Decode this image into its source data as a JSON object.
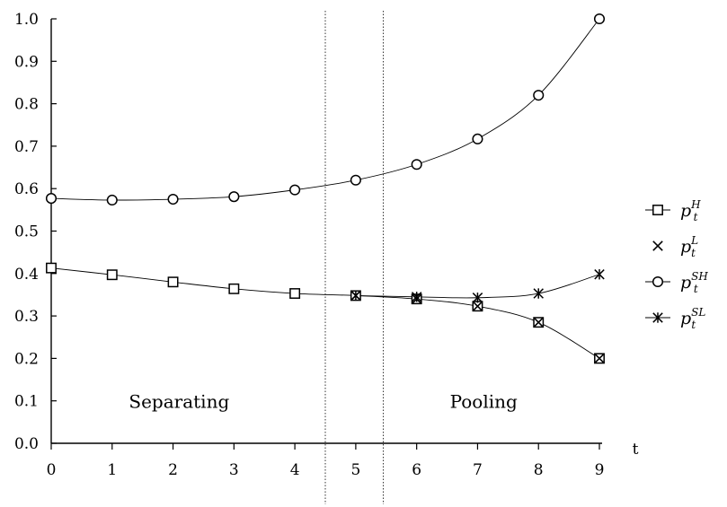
{
  "chart_data": {
    "type": "line",
    "title": "",
    "xlabel": "t",
    "ylabel": "",
    "xlim": [
      0,
      9
    ],
    "ylim": [
      0.0,
      1.0
    ],
    "x": [
      0,
      1,
      2,
      3,
      4,
      5,
      6,
      7,
      8,
      9
    ],
    "x_tick_labels": [
      "0",
      "1",
      "2",
      "3",
      "4",
      "5",
      "6",
      "7",
      "8",
      "9"
    ],
    "y_tick_labels": [
      "0.0",
      "0.1",
      "0.2",
      "0.3",
      "0.4",
      "0.5",
      "0.6",
      "0.7",
      "0.8",
      "0.9",
      "1.0"
    ],
    "y_ticks": [
      0.0,
      0.1,
      0.2,
      0.3,
      0.4,
      0.5,
      0.6,
      0.7,
      0.8,
      0.9,
      1.0
    ],
    "grid": false,
    "legend_position": "right",
    "series": [
      {
        "key": "pH",
        "base": "p",
        "sub": "t",
        "sup": "H",
        "marker": "square",
        "line": true,
        "values": [
          0.413,
          0.397,
          0.38,
          0.364,
          0.353,
          0.348,
          0.34,
          0.323,
          0.285,
          0.2
        ]
      },
      {
        "key": "pL",
        "base": "p",
        "sub": "t",
        "sup": "L",
        "marker": "x",
        "line": false,
        "values": [
          null,
          null,
          null,
          null,
          null,
          0.348,
          0.34,
          0.323,
          0.285,
          0.2
        ]
      },
      {
        "key": "pSH",
        "base": "p",
        "sub": "t",
        "sup": "SH",
        "marker": "circle",
        "line": true,
        "values": [
          0.577,
          0.573,
          0.575,
          0.581,
          0.597,
          0.62,
          0.657,
          0.717,
          0.82,
          1.0
        ]
      },
      {
        "key": "pSL",
        "base": "p",
        "sub": "t",
        "sup": "SL",
        "marker": "asterisk",
        "line": true,
        "values": [
          null,
          null,
          null,
          null,
          null,
          0.348,
          0.345,
          0.343,
          0.353,
          0.398
        ]
      }
    ],
    "vertical_lines": [
      4.5,
      5.45
    ],
    "annotations": [
      {
        "text": "Separating",
        "x": 2.1,
        "y": 0.1
      },
      {
        "text": "Pooling",
        "x": 7.1,
        "y": 0.1
      }
    ]
  }
}
